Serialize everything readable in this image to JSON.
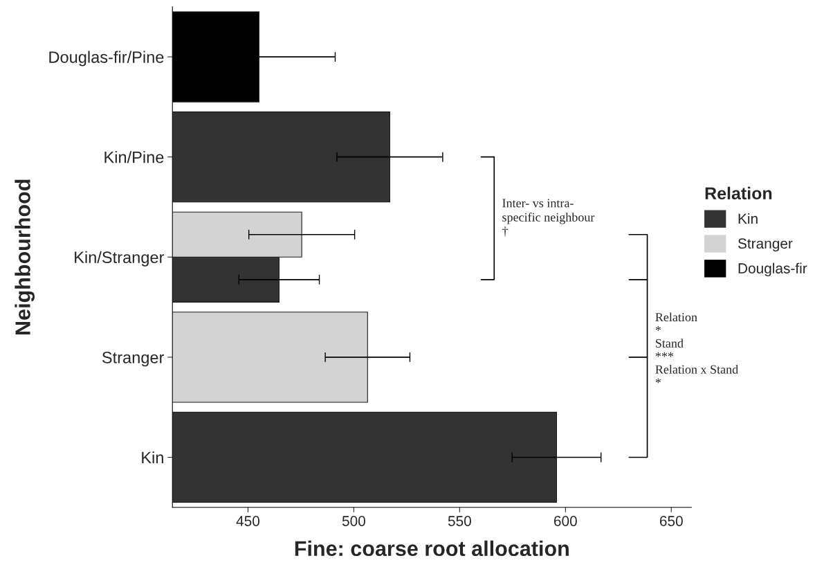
{
  "chart_data": {
    "type": "bar",
    "orientation": "horizontal",
    "xlabel": "Fine: coarse root allocation",
    "ylabel": "Neighbourhood",
    "legend_title": "Relation",
    "categories": [
      "Douglas-fir/Pine",
      "Kin/Pine",
      "Kin/Stranger",
      "Stranger",
      "Kin"
    ],
    "series": [
      {
        "name": "Kin",
        "color": "#333333",
        "values": [
          null,
          517,
          464.7,
          null,
          595.8
        ],
        "errors": [
          null,
          25,
          19,
          null,
          21
        ]
      },
      {
        "name": "Stranger",
        "color": "#d3d3d3",
        "values": [
          null,
          null,
          475.4,
          506.5,
          null
        ],
        "errors": [
          null,
          null,
          25,
          20,
          null
        ]
      },
      {
        "name": "Douglas-fir",
        "color": "#000000",
        "values": [
          455.2,
          null,
          null,
          null,
          null
        ],
        "errors": [
          36,
          null,
          null,
          null,
          null
        ]
      }
    ],
    "xlim": [
      414.3,
      659.5
    ],
    "xticks": [
      450,
      500,
      550,
      600,
      650
    ],
    "grid": false,
    "legend": "right",
    "annotations": [
      "Inter- vs intra-\nspecific neighbour\n†",
      "Relation\n*\nStand\n***\nRelation x Stand\n*"
    ]
  }
}
